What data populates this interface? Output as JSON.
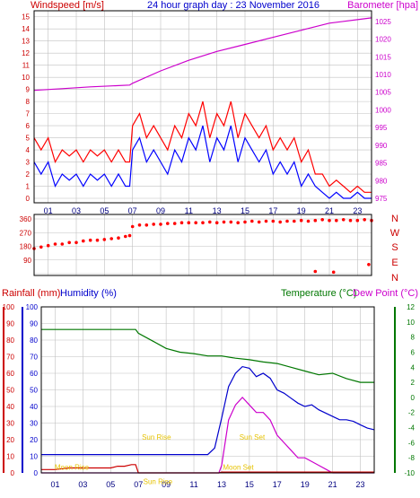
{
  "page": {
    "title": "24 hour graph day : 23 November 2016",
    "background": "#ffffff",
    "grid_color": "#c0c0c0"
  },
  "chart_data": [
    {
      "id": "wind_baro",
      "type": "line",
      "title": "24 hour graph day : 23 November 2016",
      "ylabel_left": "Windspeed [m/s]",
      "ylabel_right": "Barometer [hpa]",
      "grid": true,
      "x_ticks": [
        "01",
        "03",
        "05",
        "07",
        "09",
        "11",
        "13",
        "15",
        "17",
        "19",
        "21",
        "23"
      ],
      "y_left_ticks": [
        0,
        1,
        2,
        3,
        4,
        5,
        6,
        7,
        8,
        9,
        10,
        11,
        12,
        13,
        14,
        15
      ],
      "y_left_lim": [
        0,
        15.5
      ],
      "y_right_ticks": [
        975,
        980,
        985,
        990,
        995,
        1000,
        1005,
        1010,
        1015,
        1020,
        1025
      ],
      "y_right_lim": [
        975,
        1028
      ],
      "colors": {
        "gust": "#ff0000",
        "average": "#0000ff",
        "barometer": "#cc00cc",
        "left_axis": "#cc0000",
        "right_axis": "#cc00cc"
      },
      "series": [
        {
          "name": "Barometer",
          "axis": "right",
          "color": "#cc00cc",
          "x": [
            0,
            2,
            4,
            6.8,
            7,
            9,
            11,
            13,
            15,
            17,
            19,
            21,
            23,
            24
          ],
          "values": [
            1005.5,
            1006,
            1006.5,
            1007,
            1007.5,
            1011,
            1014,
            1016.5,
            1018.5,
            1020.5,
            1022.5,
            1024.5,
            1025.5,
            1026
          ]
        },
        {
          "name": "Gust",
          "axis": "left",
          "color": "#ff0000",
          "x": [
            0,
            0.5,
            1,
            1.5,
            2,
            2.5,
            3,
            3.5,
            4,
            4.5,
            5,
            5.5,
            6,
            6.5,
            6.8,
            7,
            7.5,
            8,
            8.5,
            9,
            9.5,
            10,
            10.5,
            11,
            11.5,
            12,
            12.5,
            13,
            13.5,
            14,
            14.5,
            15,
            15.5,
            16,
            16.5,
            17,
            17.5,
            18,
            18.5,
            19,
            19.5,
            20,
            20.5,
            21,
            21.5,
            22,
            22.5,
            23,
            23.5,
            24
          ],
          "values": [
            5,
            4,
            5,
            3,
            4,
            3.5,
            4,
            3,
            4,
            3.5,
            4,
            3,
            4,
            3,
            3,
            6,
            7,
            5,
            6,
            5,
            4,
            6,
            5,
            7,
            6,
            8,
            5,
            7,
            6,
            8,
            5,
            7,
            6,
            5,
            6,
            4,
            5,
            4,
            5,
            3,
            4,
            2,
            2,
            1,
            1.5,
            1,
            0.5,
            1,
            0.5,
            0.5
          ]
        },
        {
          "name": "Average",
          "axis": "left",
          "color": "#0000ff",
          "x": [
            0,
            0.5,
            1,
            1.5,
            2,
            2.5,
            3,
            3.5,
            4,
            4.5,
            5,
            5.5,
            6,
            6.5,
            6.8,
            7,
            7.5,
            8,
            8.5,
            9,
            9.5,
            10,
            10.5,
            11,
            11.5,
            12,
            12.5,
            13,
            13.5,
            14,
            14.5,
            15,
            15.5,
            16,
            16.5,
            17,
            17.5,
            18,
            18.5,
            19,
            19.5,
            20,
            20.5,
            21,
            21.5,
            22,
            22.5,
            23,
            23.5,
            24
          ],
          "values": [
            3,
            2,
            3,
            1,
            2,
            1.5,
            2,
            1,
            2,
            1.5,
            2,
            1,
            2,
            1,
            1,
            4,
            5,
            3,
            4,
            3,
            2,
            4,
            3,
            5,
            4,
            6,
            3,
            5,
            4,
            6,
            3,
            5,
            4,
            3,
            4,
            2,
            3,
            2,
            3,
            1,
            2,
            1,
            0.5,
            0,
            0.5,
            0,
            0,
            0.5,
            0,
            0
          ]
        }
      ]
    },
    {
      "id": "direction",
      "type": "scatter",
      "y_ticks": [
        0,
        90,
        180,
        270,
        360
      ],
      "y_lim": [
        0,
        360
      ],
      "y_right_labels": [
        "N",
        "W",
        "S",
        "E",
        "N"
      ],
      "grid": true,
      "colors": {
        "points": "#ff0000",
        "compass": "#cc0000",
        "axis": "#cc0000"
      },
      "series": [
        {
          "name": "Direction",
          "color": "#ff0000",
          "x": [
            0,
            0.5,
            1,
            1.5,
            2,
            2.5,
            3,
            3.5,
            4,
            4.5,
            5,
            5.5,
            6,
            6.5,
            6.8,
            7,
            7.5,
            8,
            8.5,
            9,
            9.5,
            10,
            10.5,
            11,
            11.5,
            12,
            12.5,
            13,
            13.5,
            14,
            14.5,
            15,
            15.5,
            16,
            16.5,
            17,
            17.5,
            18,
            18.5,
            19,
            19.5,
            20,
            20.5,
            21,
            21.5,
            22,
            22.5,
            23,
            23.5,
            24,
            20,
            21.3,
            23.8
          ],
          "values": [
            165,
            175,
            185,
            195,
            195,
            205,
            205,
            215,
            220,
            220,
            225,
            230,
            235,
            245,
            250,
            310,
            320,
            320,
            325,
            325,
            330,
            330,
            335,
            335,
            335,
            335,
            340,
            335,
            340,
            340,
            335,
            340,
            345,
            340,
            345,
            345,
            340,
            345,
            345,
            350,
            345,
            350,
            355,
            350,
            350,
            355,
            350,
            350,
            355,
            350,
            15,
            10,
            60
          ]
        }
      ]
    },
    {
      "id": "rain_temp",
      "type": "line",
      "ylabel_left1": "Rainfall (mm)",
      "ylabel_left2": "Humidity (%)",
      "ylabel_right1": "Temperature (°C)",
      "ylabel_right2": "Dew Point (°C)",
      "grid": true,
      "x_ticks": [
        "01",
        "03",
        "05",
        "07",
        "09",
        "11",
        "13",
        "15",
        "17",
        "19",
        "21",
        "23"
      ],
      "rain_ticks": [
        0,
        10,
        20,
        30,
        40,
        50,
        60,
        70,
        80,
        90,
        100
      ],
      "humidity_ticks": [
        0,
        10,
        20,
        30,
        40,
        50,
        60,
        70,
        80,
        90,
        100
      ],
      "temp_ticks": [
        -10,
        -8,
        -6,
        -4,
        -2,
        0,
        2,
        4,
        6,
        8,
        10,
        12
      ],
      "temp_lim": [
        -10,
        12
      ],
      "colors": {
        "rainfall": "#cc0000",
        "humidity": "#0000cc",
        "temperature": "#007700",
        "dewpoint": "#cc00cc",
        "annotation": "#e6c200",
        "rain_axis": "#cc0000",
        "humidity_axis": "#0000cc",
        "temp_axis": "#007700"
      },
      "annotations": [
        {
          "text": "Moon Rise",
          "x": 2.2,
          "y": 2
        },
        {
          "text": "Sun Rise",
          "x": 8.3,
          "y": 20
        },
        {
          "text": "Sun Rise",
          "x": 8.4,
          "y": -9.8
        },
        {
          "text": "Sun Set",
          "x": 15.2,
          "y": 20
        },
        {
          "text": "Moon Set",
          "x": 14.2,
          "y": 2
        }
      ],
      "series": [
        {
          "name": "Temperature",
          "axis": "temp",
          "color": "#007700",
          "x": [
            0,
            2,
            4,
            6,
            6.8,
            7,
            8,
            9,
            10,
            11,
            12,
            13,
            14,
            15,
            16,
            17,
            18,
            19,
            20,
            21,
            22,
            23,
            24
          ],
          "values": [
            9,
            9,
            9,
            9,
            9,
            8.5,
            7.5,
            6.5,
            6,
            5.8,
            5.5,
            5.5,
            5.2,
            5,
            4.7,
            4.5,
            4,
            3.5,
            3,
            3.2,
            2.5,
            2,
            2
          ]
        },
        {
          "name": "Dew Point",
          "axis": "temp",
          "color": "#cc00cc",
          "x": [
            0,
            12.8,
            13,
            13.5,
            14,
            14.5,
            15,
            15.5,
            16,
            16.5,
            17,
            17.5,
            18,
            18.5,
            19,
            19.5,
            20,
            20.5,
            21,
            22,
            24
          ],
          "values": [
            -10,
            -10,
            -9,
            -3,
            -1,
            0,
            -1,
            -2,
            -2,
            -3,
            -5,
            -6,
            -7,
            -8,
            -8,
            -8.5,
            -9,
            -9.5,
            -10,
            -10,
            -10
          ]
        },
        {
          "name": "Humidity",
          "axis": "humidity",
          "color": "#0000cc",
          "x": [
            0,
            12,
            12.5,
            13,
            13.5,
            14,
            14.5,
            15,
            15.5,
            16,
            16.5,
            17,
            17.5,
            18,
            18.5,
            19,
            19.5,
            20,
            21,
            21.5,
            22,
            22.5,
            23,
            23.5,
            24
          ],
          "values": [
            11,
            11,
            15,
            33,
            52,
            60,
            64,
            63,
            58,
            60,
            57,
            50,
            48,
            45,
            42,
            40,
            41,
            38,
            34,
            32,
            32,
            31,
            29,
            27,
            26
          ]
        },
        {
          "name": "Rainfall",
          "axis": "rain",
          "color": "#cc0000",
          "x": [
            0,
            1,
            2,
            3,
            4,
            5,
            5.5,
            6,
            6.5,
            6.8,
            7,
            12.8,
            13,
            24
          ],
          "values": [
            2,
            2,
            3,
            3,
            3,
            3,
            4,
            4,
            5,
            5,
            0,
            0,
            0.5,
            0.5
          ]
        }
      ]
    }
  ]
}
